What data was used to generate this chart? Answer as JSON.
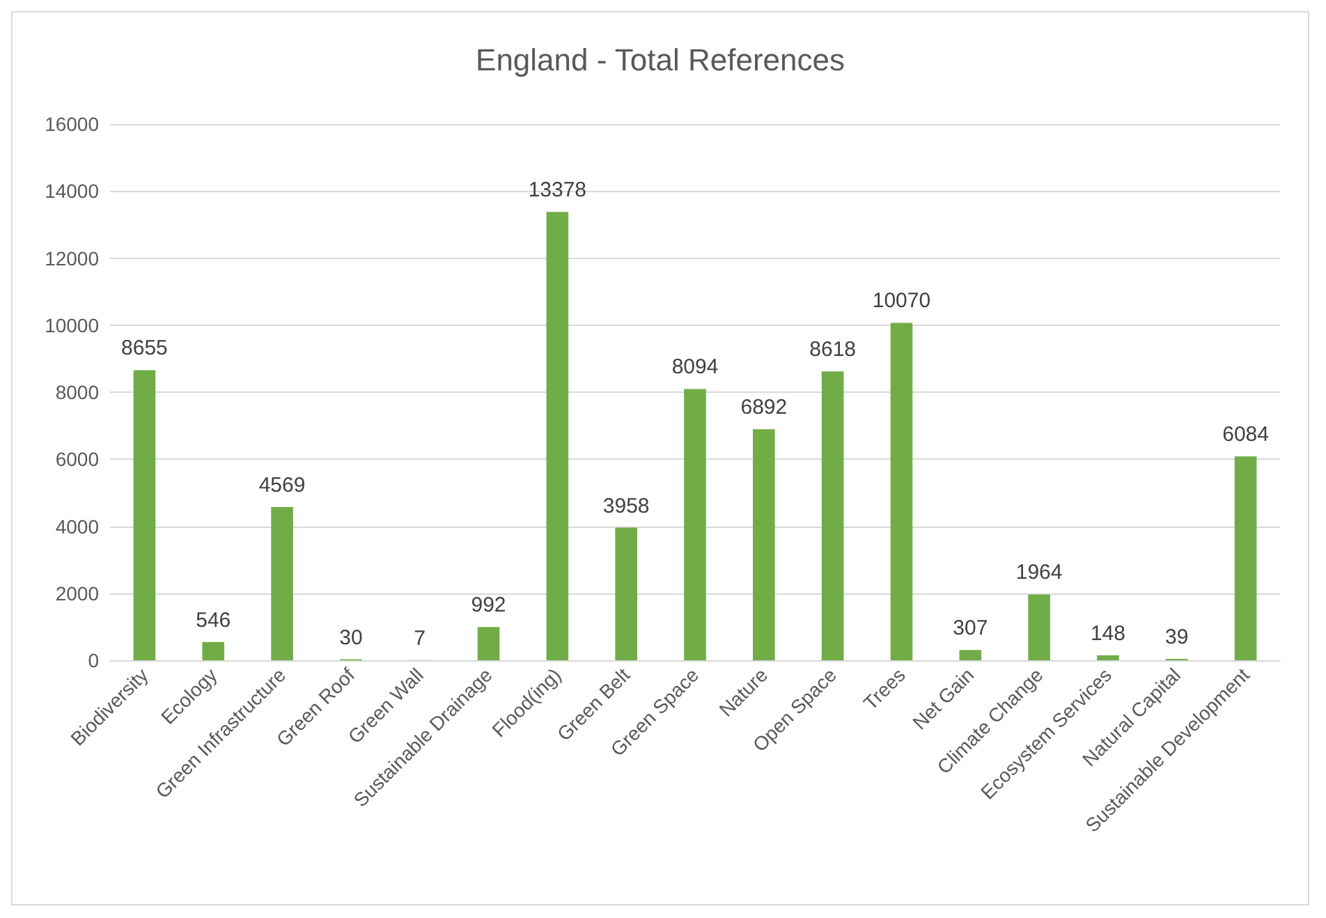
{
  "chart_data": {
    "type": "bar",
    "title": "England - Total References",
    "categories": [
      "Biodiversity",
      "Ecology",
      "Green Infrastructure",
      "Green Roof",
      "Green Wall",
      "Sustainable Drainage",
      "Flood(ing)",
      "Green Belt",
      "Green Space",
      "Nature",
      "Open Space",
      "Trees",
      "Net Gain",
      "Climate Change",
      "Ecosystem Services",
      "Natural Capital",
      "Sustainable Development"
    ],
    "values": [
      8655,
      546,
      4569,
      30,
      7,
      992,
      13378,
      3958,
      8094,
      6892,
      8618,
      10070,
      307,
      1964,
      148,
      39,
      6084
    ],
    "color": "#70ad47",
    "ylim": [
      0,
      16000
    ],
    "yticks": [
      0,
      2000,
      4000,
      6000,
      8000,
      10000,
      12000,
      14000,
      16000
    ],
    "grid": "y",
    "data_labels": true
  }
}
